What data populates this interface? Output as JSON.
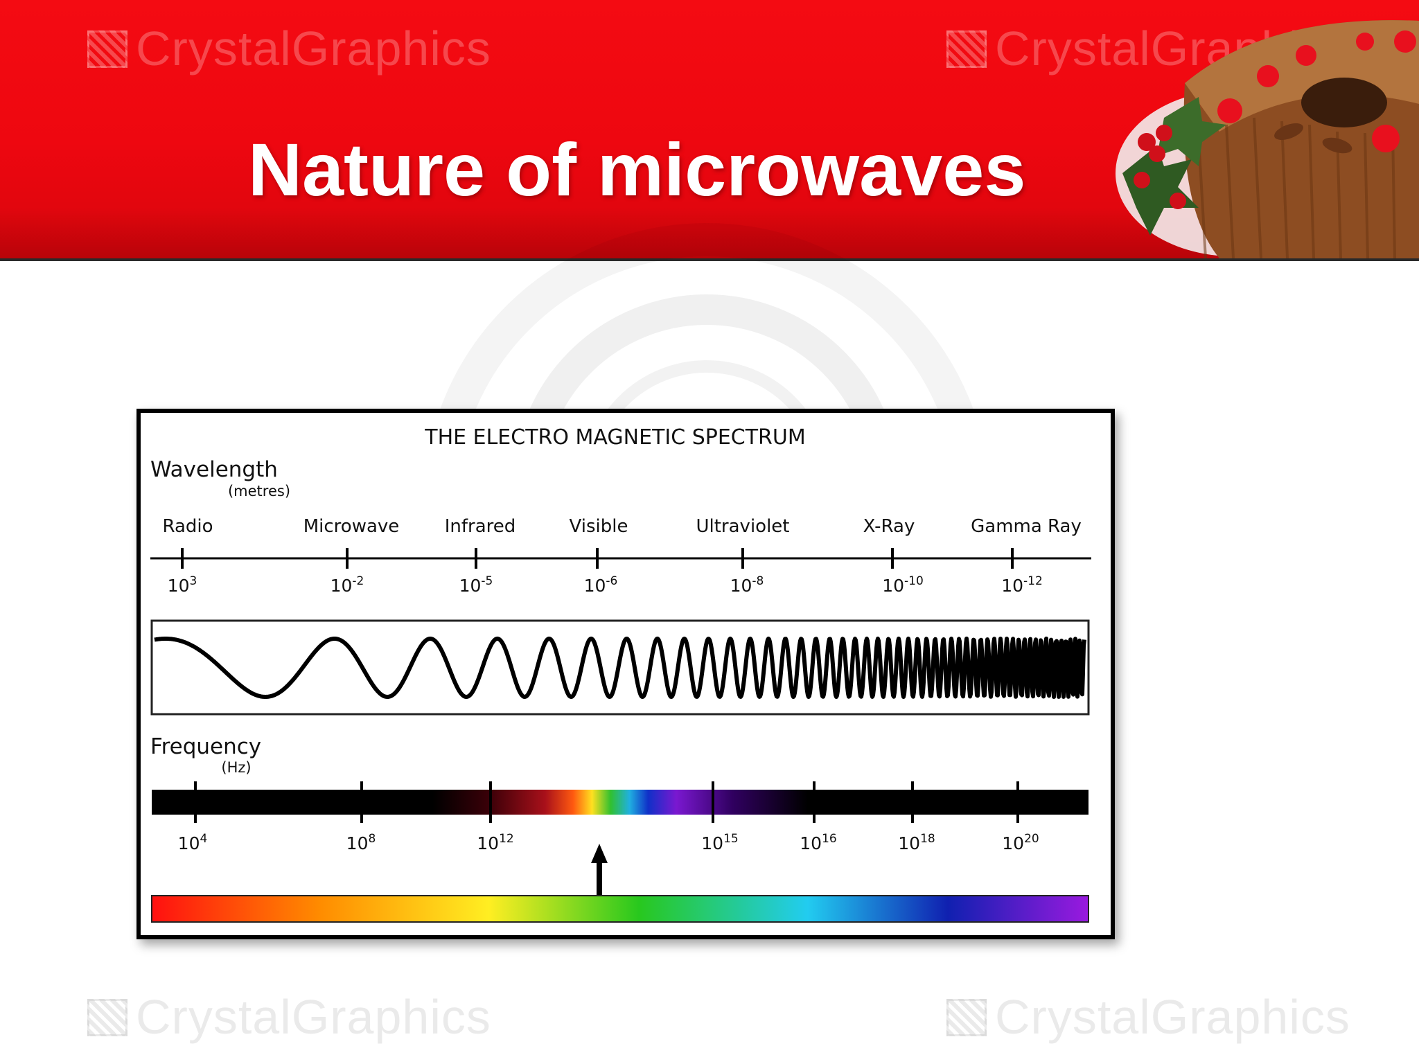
{
  "slide": {
    "title": "Nature of microwaves",
    "watermark": "CrystalGraphics",
    "colors": {
      "banner": "#ee0710",
      "title_text": "#ffffff",
      "cake": "#9a5a2c",
      "cherry": "#e8101e",
      "holly": "#2f5a22"
    }
  },
  "diagram": {
    "title": "THE ELECTRO MAGNETIC SPECTRUM",
    "wavelength": {
      "label": "Wavelength",
      "unit": "(metres)",
      "ticks": [
        {
          "name": "Radio",
          "base": "10",
          "exp": "3"
        },
        {
          "name": "Microwave",
          "base": "10",
          "exp": "-2"
        },
        {
          "name": "Infrared",
          "base": "10",
          "exp": "-5"
        },
        {
          "name": "Visible",
          "base": "10",
          "exp": "-6"
        },
        {
          "name": "Ultraviolet",
          "base": "10",
          "exp": "-8"
        },
        {
          "name": "X-Ray",
          "base": "10",
          "exp": "-10"
        },
        {
          "name": "Gamma Ray",
          "base": "10",
          "exp": "-12"
        }
      ]
    },
    "frequency": {
      "label": "Frequency",
      "unit": "(Hz)",
      "ticks": [
        {
          "base": "10",
          "exp": "4"
        },
        {
          "base": "10",
          "exp": "8"
        },
        {
          "base": "10",
          "exp": "12"
        },
        {
          "base": "10",
          "exp": "15"
        },
        {
          "base": "10",
          "exp": "16"
        },
        {
          "base": "10",
          "exp": "18"
        },
        {
          "base": "10",
          "exp": "20"
        }
      ]
    },
    "visible_spectrum_colors": [
      "#ff1010",
      "#ff8c00",
      "#ffee22",
      "#28c81e",
      "#22ccf0",
      "#1020b0",
      "#9a1adf"
    ]
  }
}
